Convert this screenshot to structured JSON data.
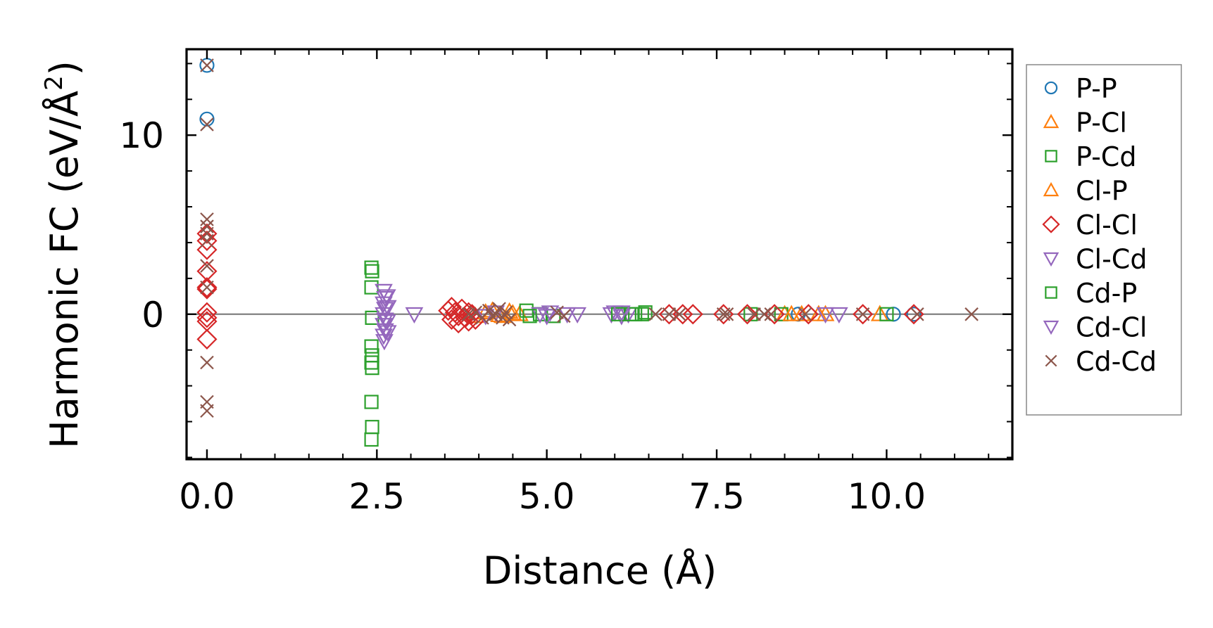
{
  "chart_data": {
    "type": "scatter",
    "title": "",
    "xlabel": "Distance (Å)",
    "ylabel_main": "Harmonic FC (eV/Å",
    "ylabel_sup": "2",
    "ylabel_close": ")",
    "xlim": [
      -0.3,
      11.85
    ],
    "ylim": [
      -8.1,
      14.8
    ],
    "xticks": [
      0.0,
      2.5,
      5.0,
      7.5,
      10.0
    ],
    "xtick_labels": [
      "0.0",
      "2.5",
      "5.0",
      "7.5",
      "10.0"
    ],
    "xminor_step": 0.5,
    "yticks": [
      0,
      10
    ],
    "ytick_labels": [
      "0",
      "10"
    ],
    "yminor_step": 2,
    "zero_line": true,
    "legend_position": "outside-right",
    "series": [
      {
        "name": "P-P",
        "marker": "circle",
        "color": "#1f77b4",
        "points": [
          [
            0,
            13.9
          ],
          [
            0,
            10.9
          ],
          [
            10.1,
            0.0
          ],
          [
            10.4,
            0.0
          ],
          [
            8.7,
            0.0
          ]
        ]
      },
      {
        "name": "P-Cl",
        "marker": "triangle-up",
        "color": "#ff7f0e",
        "points": [
          [
            3.95,
            -0.1
          ],
          [
            4.1,
            0.1
          ],
          [
            4.3,
            -0.05
          ],
          [
            4.45,
            0.15
          ],
          [
            4.6,
            0.0
          ],
          [
            8.5,
            0.0
          ],
          [
            8.75,
            0.0
          ],
          [
            9.0,
            0.0
          ],
          [
            9.9,
            0.0
          ]
        ]
      },
      {
        "name": "P-Cd",
        "marker": "square",
        "color": "#2ca02c",
        "points": [
          [
            2.42,
            2.6
          ],
          [
            2.43,
            2.4
          ],
          [
            2.42,
            1.5
          ],
          [
            2.43,
            -0.2
          ],
          [
            2.42,
            -1.8
          ],
          [
            2.43,
            -2.3
          ],
          [
            2.42,
            -2.7
          ],
          [
            2.43,
            -3.0
          ],
          [
            2.42,
            -4.9
          ],
          [
            2.43,
            -6.3
          ],
          [
            2.42,
            -7.0
          ],
          [
            4.7,
            0.2
          ],
          [
            4.9,
            0.0
          ],
          [
            5.1,
            -0.1
          ],
          [
            6.3,
            0.0
          ],
          [
            6.45,
            0.1
          ],
          [
            8.0,
            0.0
          ],
          [
            8.45,
            0.0
          ],
          [
            10.0,
            0.0
          ]
        ]
      },
      {
        "name": "Cl-P",
        "marker": "triangle-up",
        "color": "#ff7f0e",
        "points": [
          [
            4.2,
            0.2
          ],
          [
            4.35,
            -0.1
          ],
          [
            4.5,
            0.05
          ],
          [
            8.6,
            0.0
          ],
          [
            9.1,
            0.0
          ]
        ]
      },
      {
        "name": "Cl-Cl",
        "marker": "diamond",
        "color": "#d62728",
        "points": [
          [
            0,
            4.5
          ],
          [
            0,
            4.1
          ],
          [
            0,
            3.6
          ],
          [
            0,
            2.4
          ],
          [
            0,
            1.5
          ],
          [
            0,
            1.4
          ],
          [
            0,
            0.1
          ],
          [
            0,
            -0.2
          ],
          [
            0,
            -0.4
          ],
          [
            0,
            -1.4
          ],
          [
            3.55,
            0.2
          ],
          [
            3.6,
            -0.3
          ],
          [
            3.65,
            0.1
          ],
          [
            3.7,
            -0.1
          ],
          [
            3.75,
            0.3
          ],
          [
            3.8,
            -0.2
          ],
          [
            3.85,
            0.1
          ],
          [
            3.9,
            0.0
          ],
          [
            3.95,
            -0.3
          ],
          [
            3.6,
            0.4
          ],
          [
            3.7,
            -0.5
          ],
          [
            3.85,
            -0.4
          ],
          [
            6.8,
            0.0
          ],
          [
            7.0,
            0.0
          ],
          [
            7.15,
            0.0
          ],
          [
            7.6,
            0.0
          ],
          [
            7.95,
            0.0
          ],
          [
            8.35,
            0.0
          ],
          [
            8.85,
            0.0
          ],
          [
            9.65,
            0.0
          ],
          [
            10.4,
            0.0
          ]
        ]
      },
      {
        "name": "Cl-Cd",
        "marker": "triangle-down",
        "color": "#9467bd",
        "points": [
          [
            2.6,
            1.3
          ],
          [
            2.62,
            0.9
          ],
          [
            2.6,
            0.6
          ],
          [
            2.62,
            0.3
          ],
          [
            2.6,
            0.0
          ],
          [
            2.62,
            -0.3
          ],
          [
            2.6,
            -0.6
          ],
          [
            2.62,
            -0.9
          ],
          [
            2.6,
            -1.2
          ],
          [
            2.61,
            -1.5
          ],
          [
            3.05,
            0.0
          ],
          [
            4.1,
            -0.1
          ],
          [
            4.25,
            0.1
          ],
          [
            4.9,
            0.0
          ],
          [
            5.05,
            0.1
          ],
          [
            5.3,
            0.0
          ],
          [
            5.45,
            0.0
          ],
          [
            5.95,
            0.0
          ],
          [
            6.0,
            0.1
          ],
          [
            6.1,
            -0.1
          ],
          [
            6.2,
            0.0
          ]
        ]
      },
      {
        "name": "Cd-P",
        "marker": "square",
        "color": "#2ca02c",
        "points": [
          [
            4.75,
            -0.1
          ],
          [
            6.05,
            0.0
          ],
          [
            6.25,
            0.0
          ],
          [
            6.4,
            0.0
          ]
        ]
      },
      {
        "name": "Cd-Cl",
        "marker": "triangle-down",
        "color": "#9467bd",
        "points": [
          [
            2.65,
            1.0
          ],
          [
            2.66,
            0.4
          ],
          [
            2.65,
            -0.4
          ],
          [
            2.66,
            -1.0
          ],
          [
            5.0,
            -0.1
          ],
          [
            6.1,
            0.1
          ],
          [
            9.1,
            0.0
          ],
          [
            9.3,
            0.0
          ]
        ]
      },
      {
        "name": "Cd-Cd",
        "marker": "x",
        "color": "#8c564b",
        "points": [
          [
            0,
            13.9
          ],
          [
            0,
            10.6
          ],
          [
            0,
            5.3
          ],
          [
            0,
            4.9
          ],
          [
            0,
            4.5
          ],
          [
            0,
            4.1
          ],
          [
            0,
            2.7
          ],
          [
            0,
            1.5
          ],
          [
            0,
            -2.7
          ],
          [
            0,
            -4.9
          ],
          [
            0,
            -5.4
          ],
          [
            3.85,
            0.0
          ],
          [
            3.95,
            0.1
          ],
          [
            4.05,
            -0.2
          ],
          [
            4.15,
            0.2
          ],
          [
            4.2,
            -0.1
          ],
          [
            4.25,
            0.0
          ],
          [
            4.3,
            0.3
          ],
          [
            4.35,
            -0.2
          ],
          [
            4.4,
            0.1
          ],
          [
            4.45,
            -0.3
          ],
          [
            5.15,
            0.1
          ],
          [
            5.25,
            -0.1
          ],
          [
            6.6,
            0.0
          ],
          [
            6.8,
            0.0
          ],
          [
            6.95,
            0.0
          ],
          [
            7.6,
            0.0
          ],
          [
            7.65,
            0.0
          ],
          [
            8.05,
            0.0
          ],
          [
            8.2,
            0.0
          ],
          [
            8.3,
            0.0
          ],
          [
            8.8,
            0.0
          ],
          [
            9.65,
            0.0
          ],
          [
            10.45,
            0.0
          ],
          [
            11.25,
            0.0
          ]
        ]
      }
    ]
  }
}
